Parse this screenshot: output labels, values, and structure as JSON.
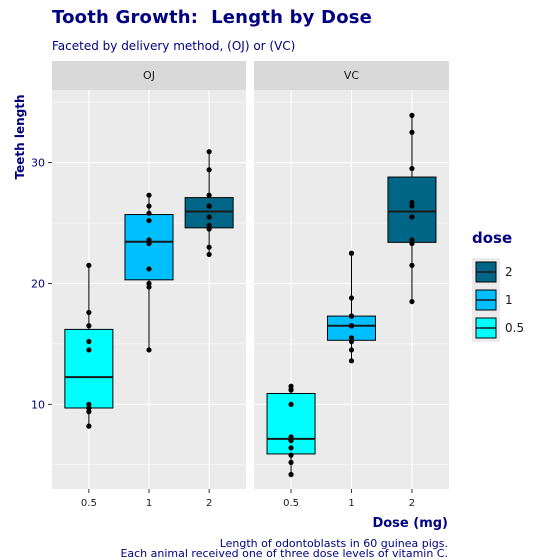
{
  "title": "Tooth Growth:  Length by Dose",
  "subtitle": "Faceted by delivery method, (OJ) or (VC)",
  "caption": {
    "line1": "Length of odontoblasts in 60 guinea pigs.",
    "line2": "Each animal received one of three dose levels of vitamin C."
  },
  "colors": {
    "title": "#000080",
    "panel_bg": "#ebebeb",
    "strip_bg": "#d9d9d9",
    "grid": "#ffffff",
    "dose_0.5": "#00FFFF",
    "dose_1": "#00BFFF",
    "dose_2": "#006687"
  },
  "chart_data": {
    "type": "box",
    "xlabel": "Dose (mg)",
    "ylabel": "Teeth length",
    "ylim": [
      3,
      36
    ],
    "yticks": [
      10,
      20,
      30
    ],
    "categories": [
      "0.5",
      "1",
      "2"
    ],
    "legend": {
      "title": "dose",
      "position": "right",
      "entries": [
        {
          "label": "2",
          "color": "#006687"
        },
        {
          "label": "1",
          "color": "#00BFFF"
        },
        {
          "label": "0.5",
          "color": "#00FFFF"
        }
      ]
    },
    "facets": [
      {
        "label": "OJ",
        "boxes": [
          {
            "dose": "0.5",
            "min": 8.2,
            "q1": 9.7,
            "median": 12.25,
            "q3": 16.2,
            "max": 21.5,
            "points": [
              15.2,
              21.5,
              17.6,
              9.7,
              14.5,
              10.0,
              8.2,
              9.4,
              16.5,
              9.7
            ]
          },
          {
            "dose": "1",
            "min": 14.5,
            "q1": 20.3,
            "median": 23.45,
            "q3": 25.7,
            "max": 27.3,
            "points": [
              19.7,
              23.3,
              23.6,
              26.4,
              20.0,
              25.2,
              25.8,
              21.2,
              14.5,
              27.3
            ]
          },
          {
            "dose": "2",
            "min": 22.4,
            "q1": 24.6,
            "median": 25.95,
            "q3": 27.1,
            "max": 30.9,
            "points": [
              25.5,
              26.4,
              22.4,
              24.5,
              24.8,
              30.9,
              26.4,
              27.3,
              29.4,
              23.0
            ]
          }
        ]
      },
      {
        "label": "VC",
        "boxes": [
          {
            "dose": "0.5",
            "min": 4.2,
            "q1": 5.9,
            "median": 7.15,
            "q3": 10.9,
            "max": 11.5,
            "points": [
              4.2,
              11.5,
              7.3,
              5.8,
              6.4,
              10.0,
              11.2,
              11.2,
              5.2,
              7.0
            ]
          },
          {
            "dose": "1",
            "min": 13.6,
            "q1": 15.3,
            "median": 16.5,
            "q3": 17.3,
            "max": 22.5,
            "points": [
              16.5,
              16.5,
              15.2,
              17.3,
              22.5,
              17.3,
              13.6,
              14.5,
              18.8,
              15.5
            ]
          },
          {
            "dose": "2",
            "min": 18.5,
            "q1": 23.4,
            "median": 25.95,
            "q3": 28.8,
            "max": 33.9,
            "points": [
              23.6,
              18.5,
              33.9,
              25.5,
              26.4,
              32.5,
              26.7,
              21.5,
              23.3,
              29.5
            ]
          }
        ]
      }
    ]
  }
}
